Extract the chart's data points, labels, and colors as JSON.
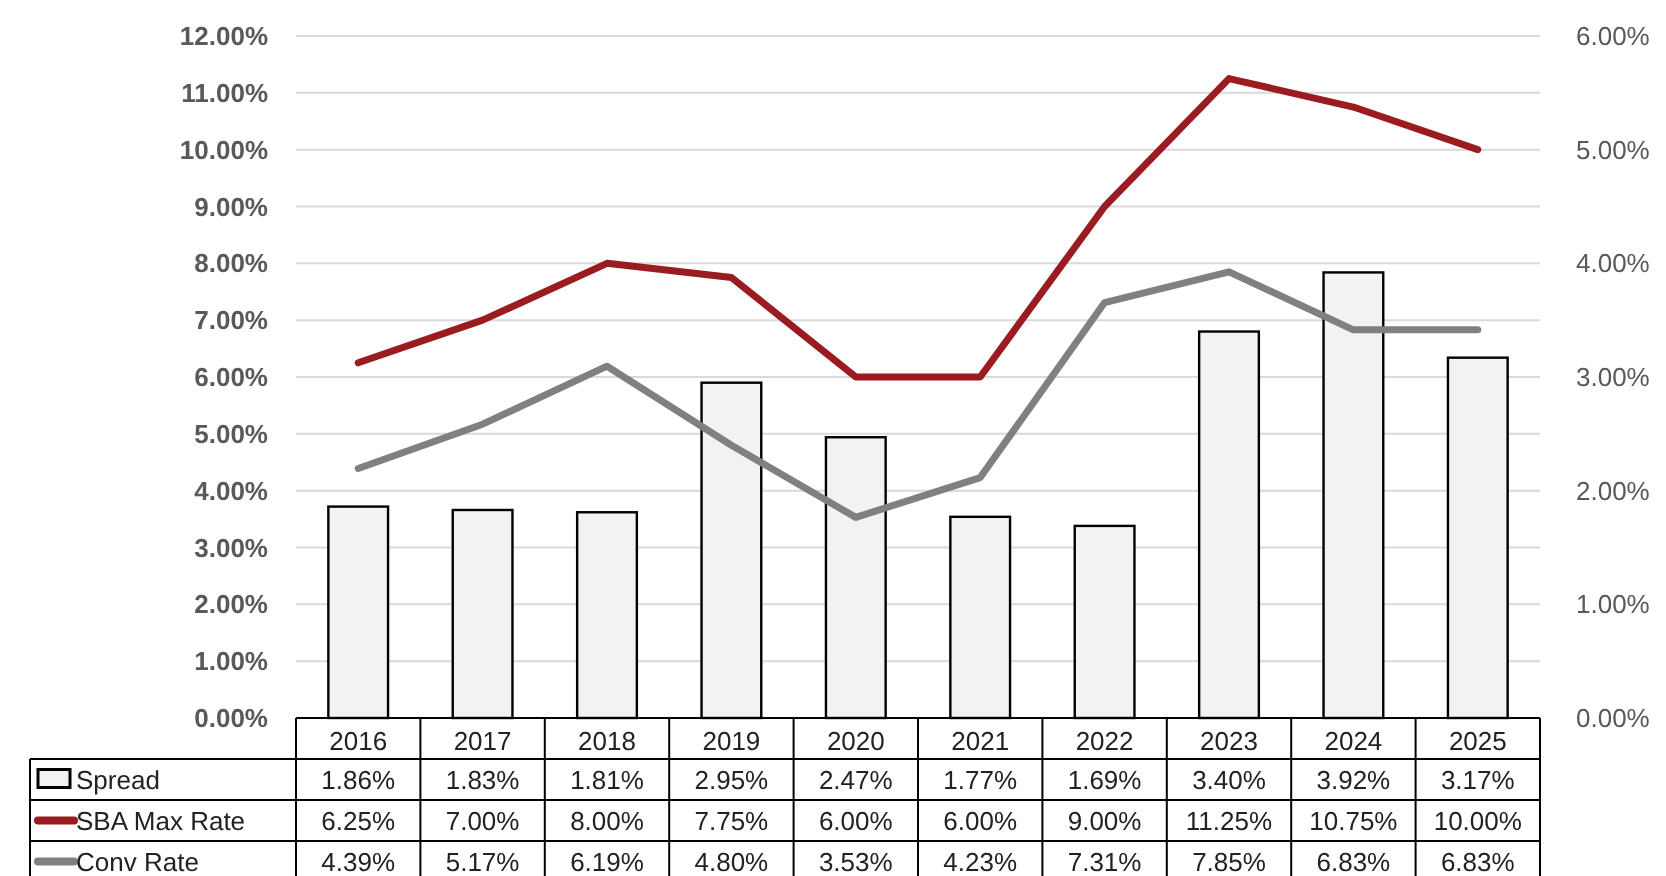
{
  "chart_data": {
    "type": "bar",
    "categories": [
      "2016",
      "2017",
      "2018",
      "2019",
      "2020",
      "2021",
      "2022",
      "2023",
      "2024",
      "2025"
    ],
    "series": [
      {
        "name": "Spread",
        "axis": "y2",
        "color": "#f2f2f2",
        "values": [
          1.86,
          1.83,
          1.81,
          2.95,
          2.47,
          1.77,
          1.69,
          3.4,
          3.92,
          3.17
        ],
        "value_labels": [
          "1.86%",
          "1.83%",
          "1.81%",
          "2.95%",
          "2.47%",
          "1.77%",
          "1.69%",
          "3.40%",
          "3.92%",
          "3.17%"
        ]
      },
      {
        "name": "SBA Max Rate",
        "type": "line",
        "color": "#9b1c20",
        "values": [
          6.25,
          7.0,
          8.0,
          7.75,
          6.0,
          6.0,
          9.0,
          11.25,
          10.75,
          10.0
        ],
        "value_labels": [
          "6.25%",
          "7.00%",
          "8.00%",
          "7.75%",
          "6.00%",
          "6.00%",
          "9.00%",
          "11.25%",
          "10.75%",
          "10.00%"
        ]
      },
      {
        "name": "Conv Rate",
        "type": "line",
        "color": "#808080",
        "values": [
          4.39,
          5.17,
          6.19,
          4.8,
          3.53,
          4.23,
          7.31,
          7.85,
          6.83,
          6.83
        ],
        "value_labels": [
          "4.39%",
          "5.17%",
          "6.19%",
          "4.80%",
          "3.53%",
          "4.23%",
          "7.31%",
          "7.85%",
          "6.83%",
          "6.83%"
        ]
      }
    ],
    "ylim": [
      0,
      12
    ],
    "yticks": [
      {
        "value": 0,
        "label": "0.00%"
      },
      {
        "value": 1,
        "label": "1.00%"
      },
      {
        "value": 2,
        "label": "2.00%"
      },
      {
        "value": 3,
        "label": "3.00%"
      },
      {
        "value": 4,
        "label": "4.00%"
      },
      {
        "value": 5,
        "label": "5.00%"
      },
      {
        "value": 6,
        "label": "6.00%"
      },
      {
        "value": 7,
        "label": "7.00%"
      },
      {
        "value": 8,
        "label": "8.00%"
      },
      {
        "value": 9,
        "label": "9.00%"
      },
      {
        "value": 10,
        "label": "10.00%"
      },
      {
        "value": 11,
        "label": "11.00%"
      },
      {
        "value": 12,
        "label": "12.00%"
      }
    ],
    "y2lim": [
      0,
      6
    ],
    "y2ticks": [
      {
        "value": 0,
        "label": "0.00%"
      },
      {
        "value": 1,
        "label": "1.00%"
      },
      {
        "value": 2,
        "label": "2.00%"
      },
      {
        "value": 3,
        "label": "3.00%"
      },
      {
        "value": 4,
        "label": "4.00%"
      },
      {
        "value": 5,
        "label": "5.00%"
      },
      {
        "value": 6,
        "label": "6.00%"
      }
    ],
    "grid": "y",
    "legend": "bottom",
    "marker": "none"
  }
}
